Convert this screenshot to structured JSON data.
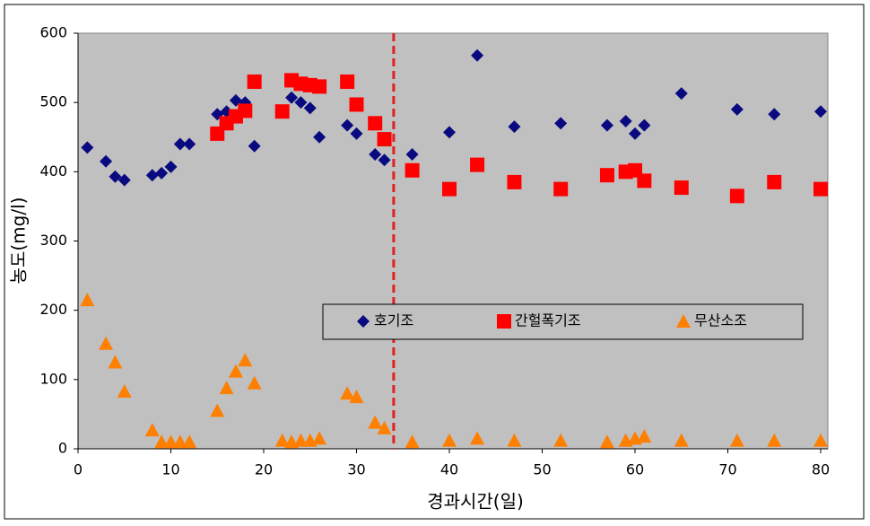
{
  "chart_data": {
    "type": "scatter",
    "x_label": "경과시간(일)",
    "y_label": "농도(mg/l)",
    "xlim": [
      0,
      80
    ],
    "xticks": [
      0,
      10,
      20,
      30,
      40,
      50,
      60,
      70,
      80
    ],
    "ylim": [
      0,
      600
    ],
    "yticks": [
      0,
      100,
      200,
      300,
      400,
      500,
      600
    ],
    "grid": false,
    "legend": "center",
    "background": "#c0c0c0",
    "vline": 34,
    "vline_color": "#e02020",
    "series": [
      {
        "name": "호기조",
        "color": "#0a0a80",
        "marker": "diamond",
        "x": [
          1,
          3,
          4,
          5,
          8,
          9,
          10,
          11,
          12,
          15,
          16,
          17,
          18,
          19,
          22,
          23,
          24,
          25,
          26,
          29,
          30,
          32,
          33,
          36,
          40,
          43,
          47,
          52,
          57,
          59,
          60,
          61,
          65,
          71,
          75,
          80
        ],
        "values": [
          435,
          415,
          393,
          388,
          395,
          398,
          407,
          440,
          440,
          483,
          487,
          503,
          500,
          437,
          487,
          507,
          500,
          492,
          450,
          467,
          455,
          425,
          417,
          425,
          457,
          568,
          465,
          470,
          467,
          473,
          455,
          467,
          513,
          490,
          483,
          487
        ]
      },
      {
        "name": "간헐폭기조",
        "color": "#ff0000",
        "marker": "square",
        "x": [
          15,
          16,
          17,
          18,
          19,
          22,
          23,
          24,
          25,
          26,
          29,
          30,
          32,
          33,
          36,
          40,
          43,
          47,
          52,
          57,
          59,
          60,
          61,
          65,
          71,
          75,
          80
        ],
        "values": [
          455,
          470,
          480,
          488,
          530,
          487,
          532,
          527,
          525,
          523,
          530,
          497,
          470,
          447,
          402,
          375,
          410,
          385,
          375,
          395,
          400,
          402,
          387,
          377,
          365,
          385,
          375
        ]
      },
      {
        "name": "무산소조",
        "color": "#ff7f00",
        "marker": "triangle",
        "x": [
          1,
          3,
          4,
          5,
          8,
          9,
          10,
          11,
          12,
          15,
          16,
          17,
          18,
          19,
          22,
          23,
          24,
          25,
          26,
          29,
          30,
          32,
          33,
          36,
          40,
          43,
          47,
          52,
          57,
          59,
          60,
          61,
          65,
          71,
          75,
          80
        ],
        "values": [
          215,
          152,
          125,
          83,
          27,
          10,
          10,
          10,
          10,
          55,
          88,
          112,
          128,
          95,
          12,
          10,
          12,
          12,
          15,
          80,
          75,
          38,
          30,
          10,
          12,
          15,
          12,
          12,
          10,
          12,
          15,
          18,
          12,
          12,
          12,
          12
        ]
      }
    ]
  }
}
